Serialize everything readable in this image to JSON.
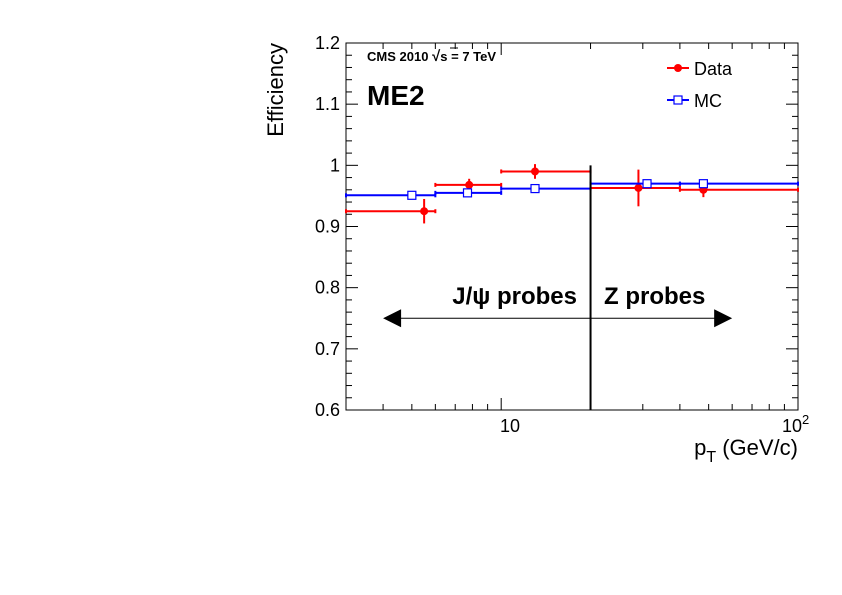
{
  "chart_data": {
    "type": "scatter",
    "xscale": "log",
    "xlim": [
      3,
      100
    ],
    "ylim": [
      0.6,
      1.2
    ],
    "xlabel": "p",
    "xlabel_sub": "T",
    "xlabel_units": " (GeV/c)",
    "ylabel": "Efficiency",
    "y_ticks": [
      "0.6",
      "0.7",
      "0.8",
      "0.9",
      "1",
      "1.1",
      "1.2"
    ],
    "x_tick_10": "10",
    "x_tick_100_base": "10",
    "x_tick_100_exp": "2",
    "banner_prefix": "CMS 2010 ",
    "banner_sqrt": "√",
    "banner_suffix": "s = 7 TeV",
    "tag": "ME2",
    "region_left": "J/ψ probes",
    "region_right": "Z probes",
    "divider_x": 20,
    "arrow_left_x": 4,
    "arrow_right_x": 60,
    "arrow_y": 0.75,
    "grid": false,
    "legend_position": "top-right",
    "series": [
      {
        "name": "Data",
        "color": "#ff0000",
        "marker": "filled-circle",
        "points": [
          {
            "x": 5.5,
            "y": 0.925,
            "xlo": 3,
            "xhi": 6,
            "ylo": 0.905,
            "yhi": 0.945
          },
          {
            "x": 7.8,
            "y": 0.968,
            "xlo": 6,
            "xhi": 10,
            "ylo": 0.958,
            "yhi": 0.978
          },
          {
            "x": 13,
            "y": 0.99,
            "xlo": 10,
            "xhi": 20,
            "ylo": 0.978,
            "yhi": 1.002
          },
          {
            "x": 29,
            "y": 0.963,
            "xlo": 20,
            "xhi": 40,
            "ylo": 0.933,
            "yhi": 0.993
          },
          {
            "x": 48,
            "y": 0.96,
            "xlo": 40,
            "xhi": 100,
            "ylo": 0.948,
            "yhi": 0.972
          }
        ]
      },
      {
        "name": "MC",
        "color": "#0000ff",
        "marker": "open-square",
        "points": [
          {
            "x": 5,
            "y": 0.951,
            "xlo": 3,
            "xhi": 6,
            "ylo": 0.951,
            "yhi": 0.951
          },
          {
            "x": 7.7,
            "y": 0.955,
            "xlo": 6,
            "xhi": 10,
            "ylo": 0.955,
            "yhi": 0.955
          },
          {
            "x": 13,
            "y": 0.962,
            "xlo": 10,
            "xhi": 20,
            "ylo": 0.962,
            "yhi": 0.962
          },
          {
            "x": 31,
            "y": 0.97,
            "xlo": 20,
            "xhi": 40,
            "ylo": 0.97,
            "yhi": 0.97
          },
          {
            "x": 48,
            "y": 0.97,
            "xlo": 40,
            "xhi": 100,
            "ylo": 0.97,
            "yhi": 0.97
          }
        ]
      }
    ]
  }
}
